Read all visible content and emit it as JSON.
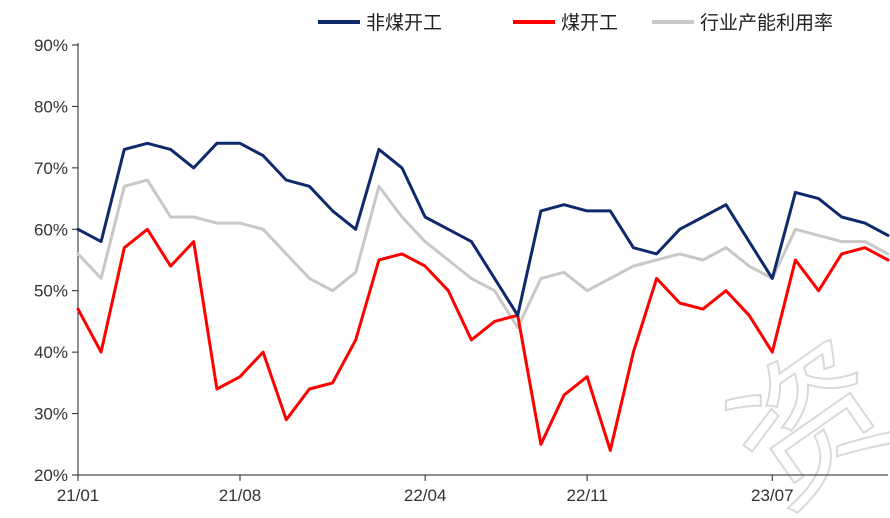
{
  "chart_data": {
    "type": "line",
    "x_ticks": [
      "21/01",
      "21/08",
      "22/04",
      "22/11",
      "23/07"
    ],
    "y_ticks": [
      "20%",
      "30%",
      "40%",
      "50%",
      "60%",
      "70%",
      "80%",
      "90%"
    ],
    "ylim": [
      20,
      90
    ],
    "x_domain": [
      "2021-01",
      "2023-12"
    ],
    "grid": false,
    "legend_position": "top",
    "series": [
      {
        "name": "非煤开工",
        "color": "#0f2a6b",
        "x": [
          "2021-01",
          "2021-02",
          "2021-03",
          "2021-04",
          "2021-05",
          "2021-06",
          "2021-07",
          "2021-08",
          "2021-09",
          "2021-10",
          "2021-11",
          "2021-12",
          "2022-01",
          "2022-02",
          "2022-03",
          "2022-04",
          "2022-05",
          "2022-06",
          "2022-07",
          "2022-08",
          "2022-09",
          "2022-10",
          "2022-11",
          "2022-12",
          "2023-01",
          "2023-02",
          "2023-03",
          "2023-04",
          "2023-05",
          "2023-06",
          "2023-07",
          "2023-08",
          "2023-09",
          "2023-10",
          "2023-11",
          "2023-12"
        ],
        "values": [
          60,
          58,
          73,
          74,
          73,
          70,
          74,
          74,
          72,
          68,
          67,
          63,
          60,
          73,
          70,
          62,
          60,
          58,
          52,
          46,
          63,
          64,
          63,
          63,
          57,
          56,
          60,
          62,
          64,
          58,
          52,
          66,
          65,
          62,
          61,
          59
        ]
      },
      {
        "name": "煤开工",
        "color": "#ff0000",
        "x": [
          "2021-01",
          "2021-02",
          "2021-03",
          "2021-04",
          "2021-05",
          "2021-06",
          "2021-07",
          "2021-08",
          "2021-09",
          "2021-10",
          "2021-11",
          "2021-12",
          "2022-01",
          "2022-02",
          "2022-03",
          "2022-04",
          "2022-05",
          "2022-06",
          "2022-07",
          "2022-08",
          "2022-09",
          "2022-10",
          "2022-11",
          "2022-12",
          "2023-01",
          "2023-02",
          "2023-03",
          "2023-04",
          "2023-05",
          "2023-06",
          "2023-07",
          "2023-08",
          "2023-09",
          "2023-10",
          "2023-11",
          "2023-12"
        ],
        "values": [
          47,
          40,
          57,
          60,
          54,
          58,
          34,
          36,
          40,
          29,
          34,
          35,
          42,
          55,
          56,
          54,
          50,
          42,
          45,
          46,
          25,
          33,
          36,
          24,
          40,
          52,
          48,
          47,
          50,
          46,
          40,
          55,
          50,
          56,
          57,
          55
        ]
      },
      {
        "name": "行业产能利用率",
        "color": "#c8c8c8",
        "x": [
          "2021-01",
          "2021-02",
          "2021-03",
          "2021-04",
          "2021-05",
          "2021-06",
          "2021-07",
          "2021-08",
          "2021-09",
          "2021-10",
          "2021-11",
          "2021-12",
          "2022-01",
          "2022-02",
          "2022-03",
          "2022-04",
          "2022-05",
          "2022-06",
          "2022-07",
          "2022-08",
          "2022-09",
          "2022-10",
          "2022-11",
          "2022-12",
          "2023-01",
          "2023-02",
          "2023-03",
          "2023-04",
          "2023-05",
          "2023-06",
          "2023-07",
          "2023-08",
          "2023-09",
          "2023-10",
          "2023-11",
          "2023-12"
        ],
        "values": [
          56,
          52,
          67,
          68,
          62,
          62,
          61,
          61,
          60,
          56,
          52,
          50,
          53,
          67,
          62,
          58,
          55,
          52,
          50,
          44,
          52,
          53,
          50,
          52,
          54,
          55,
          56,
          55,
          57,
          54,
          52,
          60,
          59,
          58,
          58,
          56
        ]
      }
    ]
  }
}
